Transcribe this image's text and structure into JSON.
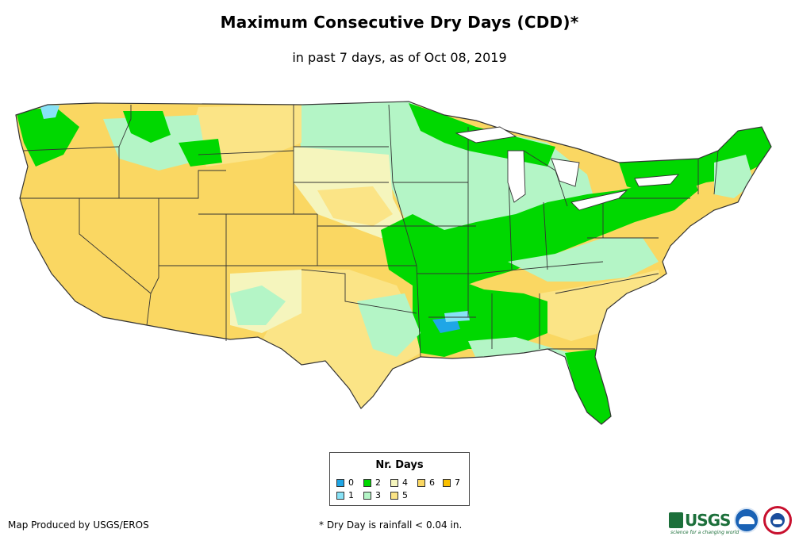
{
  "title": "Maximum Consecutive Dry Days (CDD)*",
  "subtitle": "in past 7 days, as of Oct 08, 2019",
  "legend": {
    "title": "Nr. Days",
    "items": [
      {
        "label": "0",
        "color": "#1fa6e6"
      },
      {
        "label": "1",
        "color": "#88e2f6"
      },
      {
        "label": "2",
        "color": "#00d800"
      },
      {
        "label": "3",
        "color": "#b4f5c6"
      },
      {
        "label": "4",
        "color": "#f5f5bd"
      },
      {
        "label": "5",
        "color": "#fbe486"
      },
      {
        "label": "6",
        "color": "#fad762"
      },
      {
        "label": "7",
        "color": "#fac000"
      }
    ]
  },
  "credit": "Map Produced by USGS/EROS",
  "footnote": "* Dry Day is rainfall < 0.04 in.",
  "logos": {
    "usgs": "USGS",
    "usgs_tagline": "science for a changing world",
    "noaa": "noaa",
    "nws": "National Weather Service"
  },
  "colors": {
    "state_border": "#333333",
    "background": "#ffffff"
  }
}
